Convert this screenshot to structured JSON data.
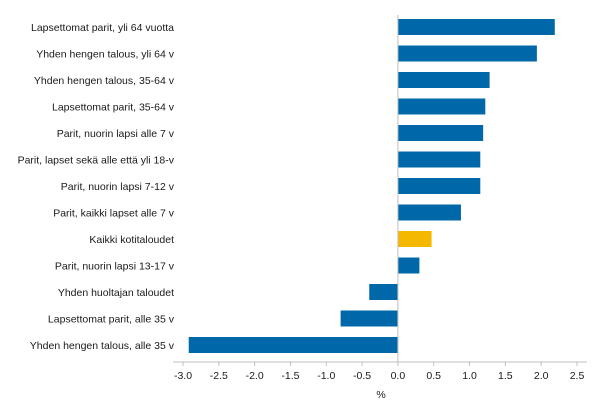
{
  "chart_data": {
    "type": "bar",
    "orientation": "horizontal",
    "title": "",
    "xlabel": "%",
    "ylabel": "",
    "xlim": [
      -3.0,
      2.5
    ],
    "xticks": [
      -3.0,
      -2.5,
      -2.0,
      -1.5,
      -1.0,
      -0.5,
      0.0,
      0.5,
      1.0,
      1.5,
      2.0,
      2.5
    ],
    "xtick_labels": [
      "-3.0",
      "-2.5",
      "-2.0",
      "-1.5",
      "-1.0",
      "-0.5",
      "0.0",
      "0.5",
      "1.0",
      "1.5",
      "2.0",
      "2.5"
    ],
    "grid": false,
    "categories": [
      "Lapsettomat parit, yli 64 vuotta",
      "Yhden hengen talous, yli 64 v",
      "Yhden hengen talous, 35-64 v",
      "Lapsettomat parit, 35-64 v",
      "Parit,  nuorin lapsi alle 7 v",
      "Parit, lapset sekä alle että yli 18-v",
      "Parit, nuorin lapsi 7-12 v",
      "Parit, kaikki lapset alle 7 v",
      "Kaikki kotitaloudet",
      "Parit, nuorin lapsi 13-17 v",
      "Yhden huoltajan taloudet",
      "Lapsettomat parit,  alle 35 v",
      "Yhden hengen talous,  alle 35 v"
    ],
    "values": [
      2.19,
      1.94,
      1.28,
      1.22,
      1.19,
      1.15,
      1.15,
      0.88,
      0.47,
      0.3,
      -0.4,
      -0.8,
      -2.92
    ],
    "highlight_index": 8,
    "colors": {
      "default": "#0068A8",
      "highlight": "#F5B800",
      "axis": "#bfbfbf"
    }
  }
}
